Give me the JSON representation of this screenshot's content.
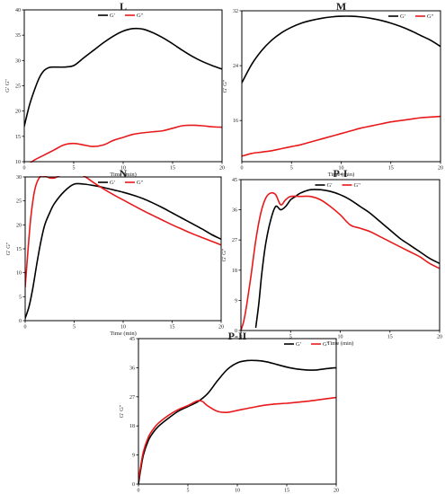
{
  "colors": {
    "g_prime": "#000000",
    "g_double_prime": "#e8191b"
  },
  "chart_data": [
    {
      "type": "line",
      "title": "L",
      "xlabel": "Time (min)",
      "ylabel": "G' G\"",
      "xlim": [
        0,
        20
      ],
      "ylim": [
        10,
        40
      ],
      "xticks": [
        0,
        5,
        10,
        15,
        20
      ],
      "yticks": [
        10,
        15,
        20,
        25,
        30,
        35,
        40
      ],
      "legend": {
        "position": "top-center",
        "entries": [
          "G'",
          "G\""
        ]
      },
      "series": [
        {
          "name": "G'",
          "color": "#000000",
          "x": [
            0,
            0.5,
            1,
            1.5,
            2,
            2.5,
            3,
            4,
            5,
            6,
            7,
            8,
            9,
            10,
            11,
            12,
            13,
            14,
            15,
            16,
            17,
            18,
            19,
            20
          ],
          "y": [
            17,
            21,
            24,
            26.5,
            28,
            28.6,
            28.7,
            28.7,
            29,
            30.5,
            32,
            33.5,
            34.8,
            35.8,
            36.3,
            36.2,
            35.5,
            34.5,
            33.3,
            32,
            30.8,
            29.8,
            29,
            28.3
          ]
        },
        {
          "name": "G\"",
          "color": "#e8191b",
          "x": [
            0,
            0.5,
            1,
            2,
            3,
            4,
            5,
            6,
            7,
            8,
            9,
            10,
            11,
            12,
            13,
            14,
            15,
            16,
            17,
            18,
            19,
            20
          ],
          "y": [
            8.5,
            9.5,
            10.3,
            11.3,
            12.3,
            13.3,
            13.6,
            13.3,
            13,
            13.3,
            14.2,
            14.8,
            15.4,
            15.7,
            15.9,
            16.1,
            16.6,
            17.1,
            17.2,
            17.1,
            16.9,
            16.8
          ]
        }
      ]
    },
    {
      "type": "line",
      "title": "M",
      "xlabel": "Time (min)",
      "ylabel": "G' G\"",
      "xlim": [
        0,
        20
      ],
      "ylim": [
        10,
        32
      ],
      "xticks": [
        0,
        5,
        10,
        15,
        20
      ],
      "yticks": [
        16,
        24,
        32
      ],
      "legend": {
        "position": "top-right",
        "entries": [
          "G'",
          "G\""
        ]
      },
      "series": [
        {
          "name": "G'",
          "color": "#000000",
          "x": [
            0,
            1,
            2,
            3,
            4,
            5,
            6,
            7,
            8,
            9,
            10,
            11,
            12,
            13,
            14,
            15,
            16,
            17,
            18,
            19,
            20
          ],
          "y": [
            21.5,
            24.2,
            26.2,
            27.7,
            28.8,
            29.6,
            30.2,
            30.6,
            30.9,
            31.1,
            31.2,
            31.2,
            31.1,
            30.9,
            30.6,
            30.2,
            29.7,
            29.1,
            28.4,
            27.7,
            26.8
          ]
        },
        {
          "name": "G\"",
          "color": "#e8191b",
          "x": [
            0,
            1,
            2,
            3,
            4,
            5,
            6,
            7,
            8,
            9,
            10,
            11,
            12,
            13,
            14,
            15,
            16,
            17,
            18,
            19,
            20
          ],
          "y": [
            10.8,
            11.2,
            11.4,
            11.6,
            11.9,
            12.2,
            12.5,
            12.9,
            13.3,
            13.7,
            14.1,
            14.5,
            14.9,
            15.2,
            15.5,
            15.8,
            16.0,
            16.2,
            16.4,
            16.5,
            16.6
          ]
        }
      ]
    },
    {
      "type": "line",
      "title": "N",
      "xlabel": "Time (min)",
      "ylabel": "G' G\"",
      "xlim": [
        0,
        20
      ],
      "ylim": [
        0,
        30
      ],
      "xticks": [
        0,
        5,
        10,
        15,
        20
      ],
      "yticks": [
        0,
        5,
        10,
        15,
        20,
        25,
        30
      ],
      "legend": {
        "position": "top-center",
        "entries": [
          "G'",
          "G\""
        ]
      },
      "series": [
        {
          "name": "G'",
          "color": "#000000",
          "x": [
            0,
            0.4,
            0.8,
            1.2,
            1.6,
            2,
            2.5,
            3,
            4,
            5,
            6,
            7,
            8,
            9,
            10,
            11,
            12,
            13,
            14,
            15,
            16,
            17,
            18,
            19,
            20
          ],
          "y": [
            0.5,
            3,
            7,
            12,
            16.5,
            20,
            22.5,
            24.5,
            27,
            28.5,
            28.5,
            28.2,
            27.8,
            27.3,
            26.8,
            26.2,
            25.5,
            24.6,
            23.6,
            22.5,
            21.4,
            20.3,
            19.2,
            18,
            17
          ]
        },
        {
          "name": "G\"",
          "color": "#e8191b",
          "x": [
            0,
            0.3,
            0.6,
            1,
            1.5,
            2,
            2.5,
            3,
            3.5,
            4,
            5,
            6,
            7,
            8,
            9,
            10,
            11,
            12,
            13,
            14,
            15,
            16,
            17,
            18,
            19,
            20
          ],
          "y": [
            7,
            15,
            22,
            27.5,
            30,
            30.2,
            29.8,
            29.8,
            30.3,
            30.8,
            31,
            30.2,
            28.8,
            27.5,
            26.3,
            25.2,
            24.1,
            23,
            22,
            21,
            20,
            19.1,
            18.2,
            17.4,
            16.6,
            15.8
          ]
        }
      ]
    },
    {
      "type": "line",
      "title": "P-I",
      "xlabel": "Time (min)",
      "ylabel": "G' G\"",
      "xlim": [
        0,
        20
      ],
      "ylim": [
        0,
        45
      ],
      "xticks": [
        0,
        5,
        10,
        15,
        20
      ],
      "yticks": [
        0,
        9,
        18,
        27,
        36,
        45
      ],
      "legend": {
        "position": "top-center",
        "entries": [
          "G'",
          "G\""
        ]
      },
      "series": [
        {
          "name": "G'",
          "color": "#000000",
          "x": [
            1.5,
            1.8,
            2.1,
            2.5,
            3,
            3.5,
            4,
            4.5,
            5,
            5.5,
            6,
            7,
            8,
            9,
            10,
            11,
            12,
            13,
            14,
            15,
            16,
            17,
            18,
            19,
            20
          ],
          "y": [
            1,
            8,
            17,
            26,
            33,
            37,
            36,
            37,
            39,
            40,
            41,
            42,
            42,
            41.5,
            40.5,
            39,
            37,
            35,
            32.5,
            30,
            27.5,
            25.5,
            23.5,
            21.5,
            20
          ]
        },
        {
          "name": "G\"",
          "color": "#e8191b",
          "x": [
            0,
            0.3,
            0.6,
            1,
            1.5,
            2,
            2.5,
            3,
            3.5,
            4,
            4.5,
            5,
            6,
            7,
            8,
            9,
            10,
            11,
            12,
            13,
            14,
            15,
            16,
            17,
            18,
            19,
            20
          ],
          "y": [
            0,
            3,
            8,
            16,
            27,
            35,
            39.5,
            41,
            40.5,
            37.5,
            39,
            40,
            40,
            40,
            39,
            37,
            34.5,
            31.5,
            30.5,
            29.5,
            28,
            26.5,
            25,
            23.5,
            22,
            20,
            18.5
          ]
        }
      ]
    },
    {
      "type": "line",
      "title": "P-II",
      "xlabel": "Time (min)",
      "ylabel": "G' G\"",
      "xlim": [
        0,
        20
      ],
      "ylim": [
        0,
        45
      ],
      "xticks": [
        0,
        5,
        10,
        15,
        20
      ],
      "yticks": [
        0,
        9,
        18,
        27,
        36,
        45
      ],
      "legend": {
        "position": "top-right",
        "entries": [
          "G'",
          "G\""
        ]
      },
      "series": [
        {
          "name": "G'",
          "color": "#000000",
          "x": [
            0,
            0.2,
            0.5,
            1,
            1.5,
            2,
            3,
            4,
            5,
            6,
            7,
            8,
            9,
            10,
            11,
            12,
            13,
            14,
            15,
            16,
            17,
            18,
            19,
            20
          ],
          "y": [
            0,
            4,
            9,
            13.5,
            16,
            17.8,
            20.3,
            22.5,
            24,
            25.5,
            28,
            32,
            35.5,
            37.5,
            38.2,
            38.2,
            37.8,
            37,
            36.2,
            35.6,
            35.3,
            35.3,
            35.7,
            36
          ]
        },
        {
          "name": "G\"",
          "color": "#e8191b",
          "x": [
            0,
            0.2,
            0.5,
            1,
            1.5,
            2,
            3,
            4,
            5,
            6,
            6.5,
            7,
            8,
            9,
            10,
            11,
            12,
            13,
            14,
            15,
            16,
            17,
            18,
            19,
            20
          ],
          "y": [
            1,
            5,
            10,
            14.5,
            17,
            18.8,
            21.2,
            23,
            24.3,
            25.8,
            25.5,
            24.2,
            22.5,
            22.2,
            22.8,
            23.4,
            24,
            24.5,
            24.8,
            25,
            25.3,
            25.6,
            26,
            26.4,
            26.8
          ]
        }
      ]
    }
  ]
}
